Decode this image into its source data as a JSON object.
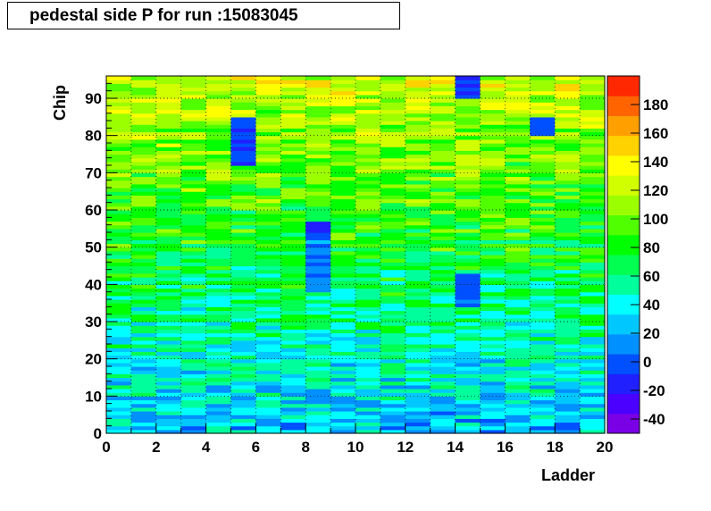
{
  "chart_data": {
    "type": "heatmap",
    "title": "pedestal side P for run :15083045",
    "xlabel": "Ladder",
    "ylabel": "Chip",
    "xlim": [
      0,
      20
    ],
    "ylim": [
      0,
      96
    ],
    "x_bins": 20,
    "y_bins": 96,
    "x_ticks": [
      "0",
      "2",
      "4",
      "6",
      "8",
      "10",
      "12",
      "14",
      "16",
      "18",
      "20"
    ],
    "y_ticks": [
      "0",
      "10",
      "20",
      "30",
      "40",
      "50",
      "60",
      "70",
      "80",
      "90"
    ],
    "z_range": [
      -50,
      200
    ],
    "z_ticks": [
      "-40",
      "-20",
      "0",
      "20",
      "40",
      "60",
      "80",
      "100",
      "120",
      "140",
      "160",
      "180"
    ],
    "grid": true,
    "colorbar": "right",
    "note": "Cell values estimated from color; roughly 20 (low chips) rising to ~130 (high chips), with low-value ladders 6 and 9 near chips 72-84 and 40-55."
  }
}
